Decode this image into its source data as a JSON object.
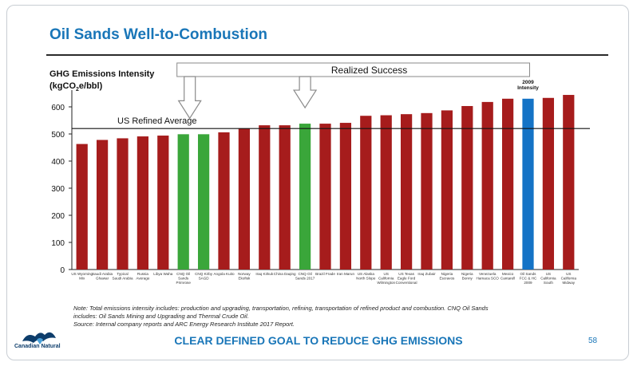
{
  "slide": {
    "title": "Oil Sands Well-to-Combustion",
    "tagline": "CLEAR DEFINED GOAL TO REDUCE GHG EMISSIONS",
    "page_number": "58",
    "notes": [
      "Note: Total emissions intensity includes: production and upgrading, transportation, refining, transportation of refined product and combustion. CNQ Oil Sands",
      "includes: Oil Sands Mining and Upgrading and Thermal Crude Oil.",
      "Source: Internal company reports and ARC Energy Research Institute 2017 Report."
    ],
    "logo_text": "Canadian Natural",
    "logo_icon": "maple-leaf-icon"
  },
  "colors": {
    "title_blue": "#1976b8",
    "bar_red": "#a61c1c",
    "bar_green": "#3aa63a",
    "bar_blue": "#1473c6",
    "arrow_fill": "#ffffff",
    "arrow_stroke": "#8a8a8a"
  },
  "chart_data": {
    "type": "bar",
    "ylabel_line1": "GHG Emissions Intensity",
    "ylabel_line2_pre": "(kgCO",
    "ylabel_line2_sub": "2",
    "ylabel_line2_post": "e/bbl)",
    "ylim": [
      0,
      650
    ],
    "yticks": [
      0,
      100,
      200,
      300,
      400,
      500,
      600
    ],
    "grid": false,
    "reference_line": {
      "label": "US Refined Average",
      "value": 520
    },
    "annotation_banner": "Realized Success",
    "intensity_label_line1": "2009",
    "intensity_label_line2": "Intensity",
    "categories": [
      "US Wyoming Mix",
      "Saudi Arabia Ghawar",
      "Typical Saudi Arabia",
      "Russia Average",
      "Libya Waha",
      "CNQ Oil Sands Primrose",
      "CNQ Kirby SAGD",
      "Angola Kuito",
      "Norway Ekofisk",
      "Iraq Kirkuk",
      "China Daqing",
      "CNQ Oil Sands 2017",
      "Brazil Frade",
      "Iran Marun",
      "US Alaska North Slope",
      "US California Wilmington",
      "US Texas Eagle Ford Conventional",
      "Iraq Zubair",
      "Nigeria Escravos",
      "Nigeria Bonny",
      "Venezuela Hamaca SCO",
      "Mexico Cantarell",
      "Oil Sands FCC & HC 2009",
      "US California South Belridge",
      "US California Midway Sunset"
    ],
    "values": [
      463,
      478,
      484,
      491,
      494,
      499,
      499,
      506,
      520,
      532,
      532,
      538,
      538,
      541,
      567,
      569,
      573,
      577,
      587,
      603,
      618,
      630,
      630,
      633,
      644
    ],
    "bar_colors": [
      "red",
      "red",
      "red",
      "red",
      "red",
      "green",
      "green",
      "red",
      "red",
      "red",
      "red",
      "green",
      "red",
      "red",
      "red",
      "red",
      "red",
      "red",
      "red",
      "red",
      "red",
      "red",
      "blue",
      "red",
      "red"
    ]
  }
}
